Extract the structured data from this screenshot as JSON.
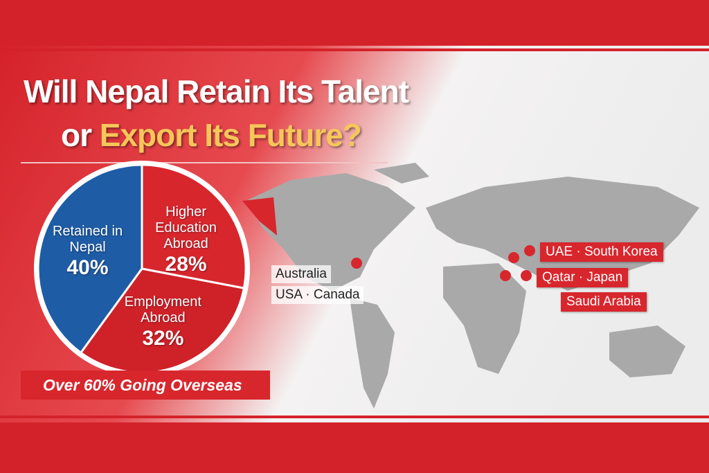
{
  "header": {
    "title_line1": "Will Nepal Retain Its Talent",
    "title_line2_prefix": "or",
    "title_line2_highlight": "Export Its Future?"
  },
  "chart_data": {
    "type": "pie",
    "categories": [
      "Retained in Nepal",
      "Higher Education Abroad",
      "Employment Abroad"
    ],
    "values": [
      40,
      28,
      32
    ],
    "value_labels": [
      "40%",
      "28%",
      "32%"
    ],
    "colors": [
      "#1f5ca6",
      "#d8262d",
      "#cf2128"
    ]
  },
  "banner": "Over 60% Going Overseas",
  "map_labels": {
    "west": [
      "Australia",
      "USA · Canada"
    ],
    "east": [
      "UAE · South Korea",
      "Qatar · Japan",
      "Saudi Arabia"
    ]
  }
}
